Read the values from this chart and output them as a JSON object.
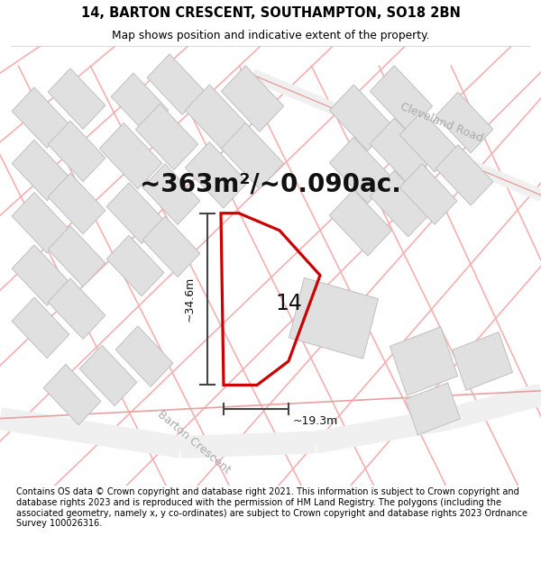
{
  "title": "14, BARTON CRESCENT, SOUTHAMPTON, SO18 2BN",
  "subtitle": "Map shows position and indicative extent of the property.",
  "area_text": "~363m²/~0.090ac.",
  "property_label": "14",
  "dim_vertical": "~34.6m",
  "dim_horizontal": "~19.3m",
  "road_label_1": "Cleveland Road",
  "road_label_2": "Barton Crescent",
  "footer": "Contains OS data © Crown copyright and database right 2021. This information is subject to Crown copyright and database rights 2023 and is reproduced with the permission of HM Land Registry. The polygons (including the associated geometry, namely x, y co-ordinates) are subject to Crown copyright and database rights 2023 Ordnance Survey 100026316.",
  "map_bg": "#ffffff",
  "road_color": "#f5b0b0",
  "road_outline": "#e8a0a0",
  "building_face": "#e0e0e0",
  "building_edge": "#c0c0c0",
  "property_fill": "#ffffff",
  "property_edge": "#cc0000",
  "dim_line_color": "#444444",
  "title_fontsize": 10.5,
  "subtitle_fontsize": 8.8,
  "area_fontsize": 20,
  "label_fontsize": 17,
  "road_label_fontsize": 9,
  "footer_fontsize": 7.0
}
